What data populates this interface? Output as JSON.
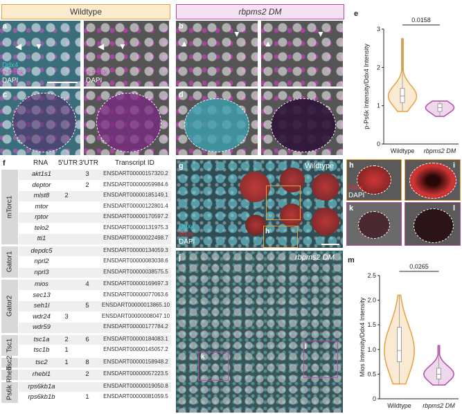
{
  "header": {
    "wildtype": "Wildtype",
    "mutant": "rbpms2 DM"
  },
  "panels": {
    "a": {
      "letter": "a",
      "legend": [
        "Ddx4",
        "p-Ps6k",
        "DAPI"
      ]
    },
    "a2": {
      "legend": [
        "p-Ps6k",
        "DAPI"
      ]
    },
    "b": {
      "letter": "b"
    },
    "c": {
      "letter": "c"
    },
    "d": {
      "letter": "d"
    },
    "e": {
      "letter": "e"
    },
    "f": {
      "letter": "f"
    },
    "g": {
      "letter": "g",
      "title": "Wildtype",
      "legend": [
        "Ddx4",
        "Mios",
        "DAPI"
      ],
      "box": "h"
    },
    "h": {
      "letter": "h",
      "legend": [
        "Mios",
        "DAPI"
      ]
    },
    "i": {
      "letter": "i"
    },
    "j": {
      "letter": "j",
      "title": "rbpms2 DM",
      "box_k": "k",
      "box_l": "l"
    },
    "k": {
      "letter": "k"
    },
    "l": {
      "letter": "l"
    },
    "m": {
      "letter": "m"
    }
  },
  "table": {
    "headers": [
      "RNA",
      "5'UTR",
      "3'UTR",
      "Transcript ID"
    ],
    "groups": [
      {
        "name": "mTorc1",
        "rows": [
          {
            "gene": "akt1s1",
            "utr5": "",
            "utr3": "3",
            "tid": "ENSDART00000157320.2"
          },
          {
            "gene": "deptor",
            "utr5": "",
            "utr3": "2",
            "tid": "ENSDART00000059984.6"
          },
          {
            "gene": "mlst8",
            "utr5": "2",
            "utr3": "",
            "tid": "ENSDART00000185149.1"
          },
          {
            "gene": "mtor",
            "utr5": "",
            "utr3": "",
            "tid": "ENSDART00000122801.4"
          },
          {
            "gene": "rptor",
            "utr5": "",
            "utr3": "",
            "tid": "ENSDART00000170597.2"
          },
          {
            "gene": "telo2",
            "utr5": "",
            "utr3": "",
            "tid": "ENSDART00000131975.3"
          },
          {
            "gene": "tti1",
            "utr5": "",
            "utr3": "",
            "tid": "ENSDART00000022498.7"
          }
        ]
      },
      {
        "name": "Gator1",
        "rows": [
          {
            "gene": "depdc5",
            "utr5": "",
            "utr3": "",
            "tid": "ENSDART00000134059.3"
          },
          {
            "gene": "nprl2",
            "utr5": "",
            "utr3": "",
            "tid": "ENSDART00000083038.6"
          },
          {
            "gene": "nprl3",
            "utr5": "",
            "utr3": "",
            "tid": "ENSDART00000038575.5"
          }
        ]
      },
      {
        "name": "Gator2",
        "rows": [
          {
            "gene": "mios",
            "utr5": "",
            "utr3": "4",
            "tid": "ENSDART00000169697.3"
          },
          {
            "gene": "sec13",
            "utr5": "",
            "utr3": "",
            "tid": "ENSDART00000077063.6"
          },
          {
            "gene": "seh1l",
            "utr5": "",
            "utr3": "5",
            "tid": "ENSDART00000013865.10"
          },
          {
            "gene": "wdr24",
            "utr5": "3",
            "utr3": "",
            "tid": "ENSDART00000008047.10"
          },
          {
            "gene": "wdr59",
            "utr5": "",
            "utr3": "",
            "tid": "ENSDART00000177784.2"
          }
        ]
      },
      {
        "name": "Tsc1",
        "rows": [
          {
            "gene": "tsc1a",
            "utr5": "2",
            "utr3": "6",
            "tid": "ENSDART00000184083.1"
          },
          {
            "gene": "tsc1b",
            "utr5": "1",
            "utr3": "",
            "tid": "ENSDART00000145057.2"
          }
        ]
      },
      {
        "name": "Tsc2",
        "rows": [
          {
            "gene": "tsc2",
            "utr5": "1",
            "utr3": "8",
            "tid": "ENSDART00000158948.2"
          }
        ]
      },
      {
        "name": "Rheb",
        "rows": [
          {
            "gene": "rhebl1",
            "utr5": "",
            "utr3": "2",
            "tid": "ENSDART00000057223.5"
          }
        ]
      },
      {
        "name": "Ps6k",
        "rows": [
          {
            "gene": "rps6kb1a",
            "utr5": "",
            "utr3": "",
            "tid": "ENSDART00000019050.8"
          },
          {
            "gene": "rps6kb1b",
            "utr5": "",
            "utr3": "1",
            "tid": "ENSDART00000081059.5"
          }
        ]
      }
    ]
  },
  "chart_data": [
    {
      "type": "violin",
      "panel": "e",
      "ylabel": "p-Ps6k Intensity/Ddx4 Intensity",
      "categories": [
        "Wildtype",
        "rbpms2 DM"
      ],
      "ylim": [
        0,
        3
      ],
      "yticks": [
        0,
        1,
        2,
        3
      ],
      "pvalue": "0.0158",
      "series": [
        {
          "name": "Wildtype",
          "median": 1.25,
          "q1": 1.08,
          "q3": 1.45,
          "min": 0.85,
          "max": 2.75,
          "color": "#e8a03a"
        },
        {
          "name": "rbpms2 DM",
          "median": 0.95,
          "q1": 0.85,
          "q3": 1.05,
          "min": 0.72,
          "max": 1.12,
          "color": "#b84aa8"
        }
      ]
    },
    {
      "type": "violin",
      "panel": "m",
      "ylabel": "Mios Intensity/Ddx4 Intensity",
      "categories": [
        "Wildtype",
        "rbpms2 DM"
      ],
      "ylim": [
        0,
        2.5
      ],
      "yticks": [
        0,
        0.5,
        1.0,
        1.5,
        2.0,
        2.5
      ],
      "pvalue": "0.0265",
      "series": [
        {
          "name": "Wildtype",
          "median": 0.98,
          "q1": 0.75,
          "q3": 1.45,
          "min": 0.3,
          "max": 2.1,
          "color": "#e8a03a"
        },
        {
          "name": "rbpms2 DM",
          "median": 0.5,
          "q1": 0.4,
          "q3": 0.62,
          "min": 0.28,
          "max": 1.08,
          "color": "#b84aa8"
        }
      ]
    }
  ],
  "colors": {
    "wildtype": "#e8a03a",
    "mutant": "#b84aa8",
    "ddx4": "#3fc7d0",
    "ps6k": "#d050c8",
    "mios": "#e03030"
  }
}
